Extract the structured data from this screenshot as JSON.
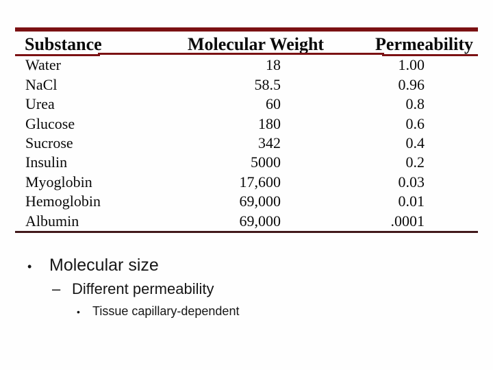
{
  "slide": {
    "colors": {
      "background": "#FEFEFE",
      "table_rule_top": "#7B1113",
      "table_rule_bottom": "#42191B",
      "text": "#0A0A0A"
    },
    "table": {
      "header": [
        "Substance",
        "Molecular Weight",
        "Permeability"
      ],
      "rows": [
        [
          "Water",
          "18",
          "1.00"
        ],
        [
          "NaCl",
          "58.5",
          "0.96"
        ],
        [
          "Urea",
          "60",
          "0.8"
        ],
        [
          "Glucose",
          "180",
          "0.6"
        ],
        [
          "Sucrose",
          "342",
          "0.4"
        ],
        [
          "Insulin",
          "5000",
          "0.2"
        ],
        [
          "Myoglobin",
          "17,600",
          "0.03"
        ],
        [
          "Hemoglobin",
          "69,000",
          "0.01"
        ],
        [
          "Albumin",
          "69,000",
          ".0001"
        ]
      ]
    },
    "bullets": [
      {
        "marker": "•",
        "text": "Molecular size"
      },
      {
        "marker": "–",
        "text": "Different permeability"
      },
      {
        "marker": "•",
        "text": "Tissue capillary-dependent"
      }
    ]
  }
}
